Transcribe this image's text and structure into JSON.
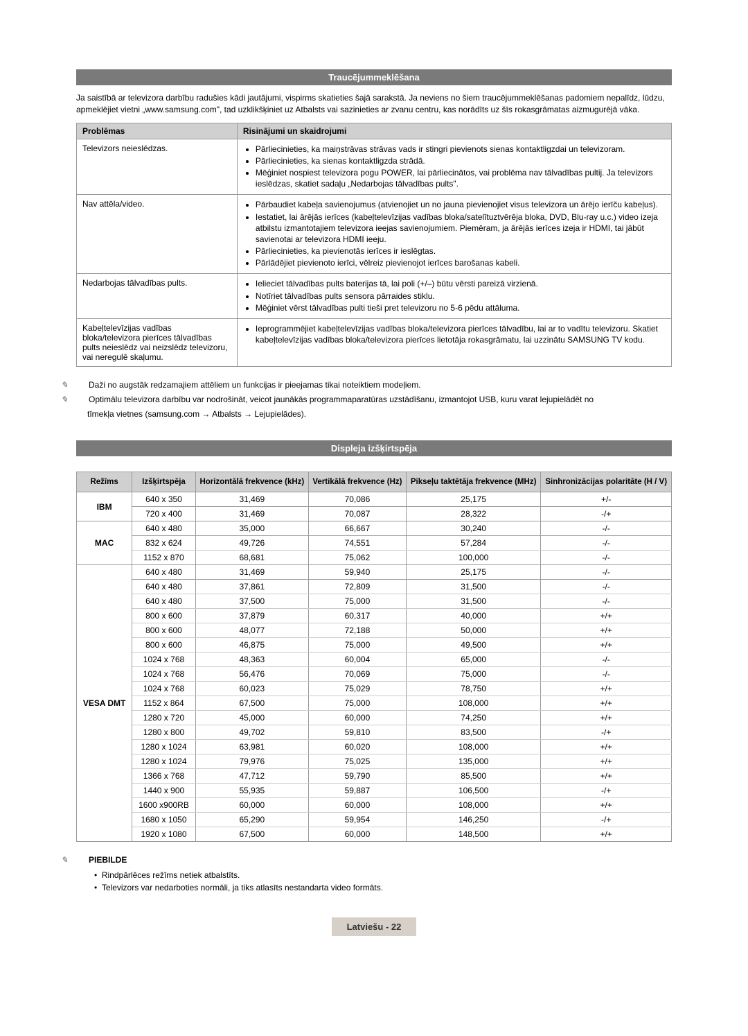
{
  "troubleshooting": {
    "header": "Traucējummeklēšana",
    "intro": "Ja saistībā ar televizora darbību radušies kādi jautājumi, vispirms skatieties šajā sarakstā. Ja neviens no šiem traucējummeklēšanas padomiem nepalīdz, lūdzu, apmeklējiet vietni „www.samsung.com\", tad uzklikšķiniet uz Atbalsts vai sazinieties ar zvanu centru, kas norādīts uz šīs rokasgrāmatas aizmugurējā vāka.",
    "col1": "Problēmas",
    "col2": "Risinājumi un skaidrojumi",
    "rows": [
      {
        "problem": "Televizors neieslēdzas.",
        "items": [
          "Pārliecinieties, ka maiņstrāvas strāvas vads ir stingri pievienots sienas kontaktligzdai un televizoram.",
          "Pārliecinieties, ka sienas kontaktligzda strādā.",
          "Mēģiniet nospiest televizora pogu POWER, lai pārliecinātos, vai problēma nav tālvadības pultij. Ja televizors ieslēdzas, skatiet sadaļu „Nedarbojas tālvadības pults\"."
        ]
      },
      {
        "problem": "Nav attēla/video.",
        "items": [
          "Pārbaudiet kabeļa savienojumus (atvienojiet un no jauna pievienojiet visus televizora un ārējo ierīču kabeļus).",
          "Iestatiet, lai ārējās ierīces (kabeļtelevīzijas vadības bloka/satelītuztvērēja bloka, DVD, Blu-ray u.c.) video izeja atbilstu izmantotajiem televizora ieejas savienojumiem. Piemēram, ja ārējās ierīces izeja ir HDMI, tai jābūt savienotai ar televizora HDMI ieeju.",
          "Pārliecinieties, ka pievienotās ierīces ir ieslēgtas.",
          "Pārlādējiet pievienoto ierīci, vēlreiz pievienojot ierīces barošanas kabeli."
        ]
      },
      {
        "problem": "Nedarbojas tālvadības pults.",
        "items": [
          "Ielieciet tālvadības pults baterijas tā, lai poli (+/–) būtu vērsti pareizā virzienā.",
          "Notīriet tālvadības pults sensora pārraides stiklu.",
          "Mēģiniet vērst tālvadības pulti tieši pret televizoru no 5-6 pēdu attāluma."
        ]
      },
      {
        "problem": "Kabeļtelevīzijas vadības bloka/televizora pierīces tālvadības pults neieslēdz vai neizslēdz televizoru, vai neregulē skaļumu.",
        "items": [
          "Ieprogrammējiet kabeļtelevīzijas vadības bloka/televizora pierīces tālvadību, lai ar to vadītu televizoru. Skatiet kabeļtelevīzijas vadības bloka/televizora pierīces lietotāja rokasgrāmatu, lai uzzinātu SAMSUNG TV kodu."
        ]
      }
    ],
    "note1": "Daži no augstāk redzamajiem attēliem un funkcijas ir pieejamas tikai noteiktiem modeļiem.",
    "note2a": "Optimālu televizora darbību var nodrošināt, veicot jaunākās programmaparatūras uzstādīšanu, izmantojot USB, kuru varat lejupielādēt no",
    "note2b": "tīmekļa vietnes (samsung.com → Atbalsts → Lejupielādes)."
  },
  "display": {
    "header": "Displeja izšķirtspēja",
    "headers": [
      "Režīms",
      "Izšķirtspēja",
      "Horizontālā frekvence (kHz)",
      "Vertikālā frekvence (Hz)",
      "Pikseļu taktētāja frekvence (MHz)",
      "Sinhronizācijas polaritāte (H / V)"
    ],
    "groups": [
      {
        "mode": "IBM",
        "rows": [
          [
            "640 x 350",
            "31,469",
            "70,086",
            "25,175",
            "+/-"
          ],
          [
            "720 x 400",
            "31,469",
            "70,087",
            "28,322",
            "-/+"
          ]
        ]
      },
      {
        "mode": "MAC",
        "rows": [
          [
            "640 x 480",
            "35,000",
            "66,667",
            "30,240",
            "-/-"
          ],
          [
            "832 x 624",
            "49,726",
            "74,551",
            "57,284",
            "-/-"
          ],
          [
            "1152 x 870",
            "68,681",
            "75,062",
            "100,000",
            "-/-"
          ]
        ]
      },
      {
        "mode": "VESA DMT",
        "rows": [
          [
            "640 x 480",
            "31,469",
            "59,940",
            "25,175",
            "-/-"
          ],
          [
            "640 x 480",
            "37,861",
            "72,809",
            "31,500",
            "-/-"
          ],
          [
            "640 x 480",
            "37,500",
            "75,000",
            "31,500",
            "-/-"
          ],
          [
            "800 x 600",
            "37,879",
            "60,317",
            "40,000",
            "+/+"
          ],
          [
            "800 x 600",
            "48,077",
            "72,188",
            "50,000",
            "+/+"
          ],
          [
            "800 x 600",
            "46,875",
            "75,000",
            "49,500",
            "+/+"
          ],
          [
            "1024 x 768",
            "48,363",
            "60,004",
            "65,000",
            "-/-"
          ],
          [
            "1024 x 768",
            "56,476",
            "70,069",
            "75,000",
            "-/-"
          ],
          [
            "1024 x 768",
            "60,023",
            "75,029",
            "78,750",
            "+/+"
          ],
          [
            "1152 x 864",
            "67,500",
            "75,000",
            "108,000",
            "+/+"
          ],
          [
            "1280 x 720",
            "45,000",
            "60,000",
            "74,250",
            "+/+"
          ],
          [
            "1280 x 800",
            "49,702",
            "59,810",
            "83,500",
            "-/+"
          ],
          [
            "1280 x 1024",
            "63,981",
            "60,020",
            "108,000",
            "+/+"
          ],
          [
            "1280 x 1024",
            "79,976",
            "75,025",
            "135,000",
            "+/+"
          ],
          [
            "1366 x 768",
            "47,712",
            "59,790",
            "85,500",
            "+/+"
          ],
          [
            "1440 x 900",
            "55,935",
            "59,887",
            "106,500",
            "-/+"
          ],
          [
            "1600 x900RB",
            "60,000",
            "60,000",
            "108,000",
            "+/+"
          ],
          [
            "1680 x 1050",
            "65,290",
            "59,954",
            "146,250",
            "-/+"
          ],
          [
            "1920 x 1080",
            "67,500",
            "60,000",
            "148,500",
            "+/+"
          ]
        ]
      }
    ]
  },
  "footnote": {
    "title": "PIEBILDE",
    "b1": "Rindpārlēces režīms netiek atbalstīts.",
    "b2": "Televizors var nedarboties normāli, ja tiks atlasīts nestandarta video formāts."
  },
  "footer": "Latviešu - 22"
}
